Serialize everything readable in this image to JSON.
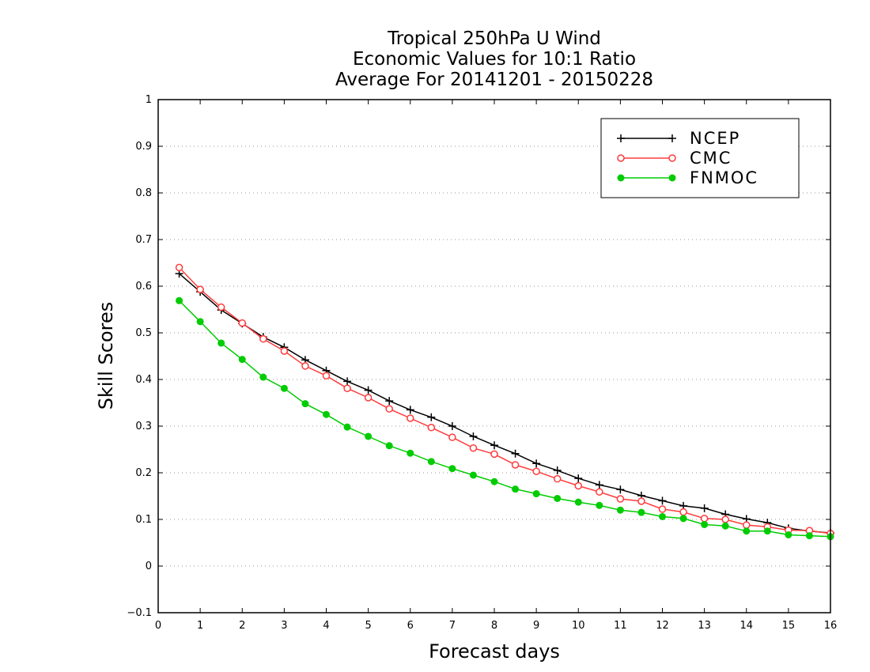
{
  "chart_data": {
    "type": "line",
    "title": [
      "Tropical 250hPa U Wind",
      "Economic Values for 10:1 Ratio",
      "Average For 20141201 - 20150228"
    ],
    "xlabel": "Forecast days",
    "ylabel": "Skill Scores",
    "xlim": [
      0,
      16
    ],
    "ylim": [
      -0.1,
      1
    ],
    "xticks": [
      "0",
      "1",
      "2",
      "3",
      "4",
      "5",
      "6",
      "7",
      "8",
      "9",
      "10",
      "11",
      "12",
      "13",
      "14",
      "15",
      "16"
    ],
    "yticks": [
      "-0.1",
      "0",
      "0.1",
      "0.2",
      "0.3",
      "0.4",
      "0.5",
      "0.6",
      "0.7",
      "0.8",
      "0.9",
      "1"
    ],
    "grid": "dotted-horizontal",
    "legend_position": "top-right",
    "x": [
      0.5,
      1,
      1.5,
      2,
      2.5,
      3,
      3.5,
      4,
      4.5,
      5,
      5.5,
      6,
      6.5,
      7,
      7.5,
      8,
      8.5,
      9,
      9.5,
      10,
      10.5,
      11,
      11.5,
      12,
      12.5,
      13,
      13.5,
      14,
      14.5,
      15,
      15.5,
      16
    ],
    "series": [
      {
        "name": "NCEP",
        "color": "#000000",
        "marker": "plus",
        "values": [
          0.627,
          0.588,
          0.549,
          0.52,
          0.491,
          0.469,
          0.442,
          0.419,
          0.396,
          0.377,
          0.354,
          0.335,
          0.319,
          0.3,
          0.278,
          0.259,
          0.241,
          0.22,
          0.205,
          0.188,
          0.174,
          0.164,
          0.151,
          0.14,
          0.129,
          0.124,
          0.111,
          0.101,
          0.093,
          0.081,
          0.075,
          0.071
        ]
      },
      {
        "name": "CMC",
        "color": "#ff3b3b",
        "marker": "open-circle",
        "values": [
          0.64,
          0.593,
          0.555,
          0.521,
          0.487,
          0.461,
          0.429,
          0.408,
          0.381,
          0.361,
          0.337,
          0.317,
          0.297,
          0.276,
          0.253,
          0.24,
          0.217,
          0.203,
          0.187,
          0.172,
          0.159,
          0.144,
          0.139,
          0.122,
          0.116,
          0.102,
          0.1,
          0.088,
          0.084,
          0.077,
          0.076,
          0.07
        ]
      },
      {
        "name": "FNMOC",
        "color": "#00cc00",
        "marker": "filled-circle",
        "values": [
          0.569,
          0.524,
          0.478,
          0.443,
          0.405,
          0.381,
          0.348,
          0.325,
          0.298,
          0.278,
          0.258,
          0.242,
          0.224,
          0.209,
          0.195,
          0.181,
          0.165,
          0.155,
          0.145,
          0.137,
          0.13,
          0.12,
          0.115,
          0.106,
          0.102,
          0.089,
          0.086,
          0.075,
          0.075,
          0.067,
          0.065,
          0.063
        ]
      }
    ]
  }
}
